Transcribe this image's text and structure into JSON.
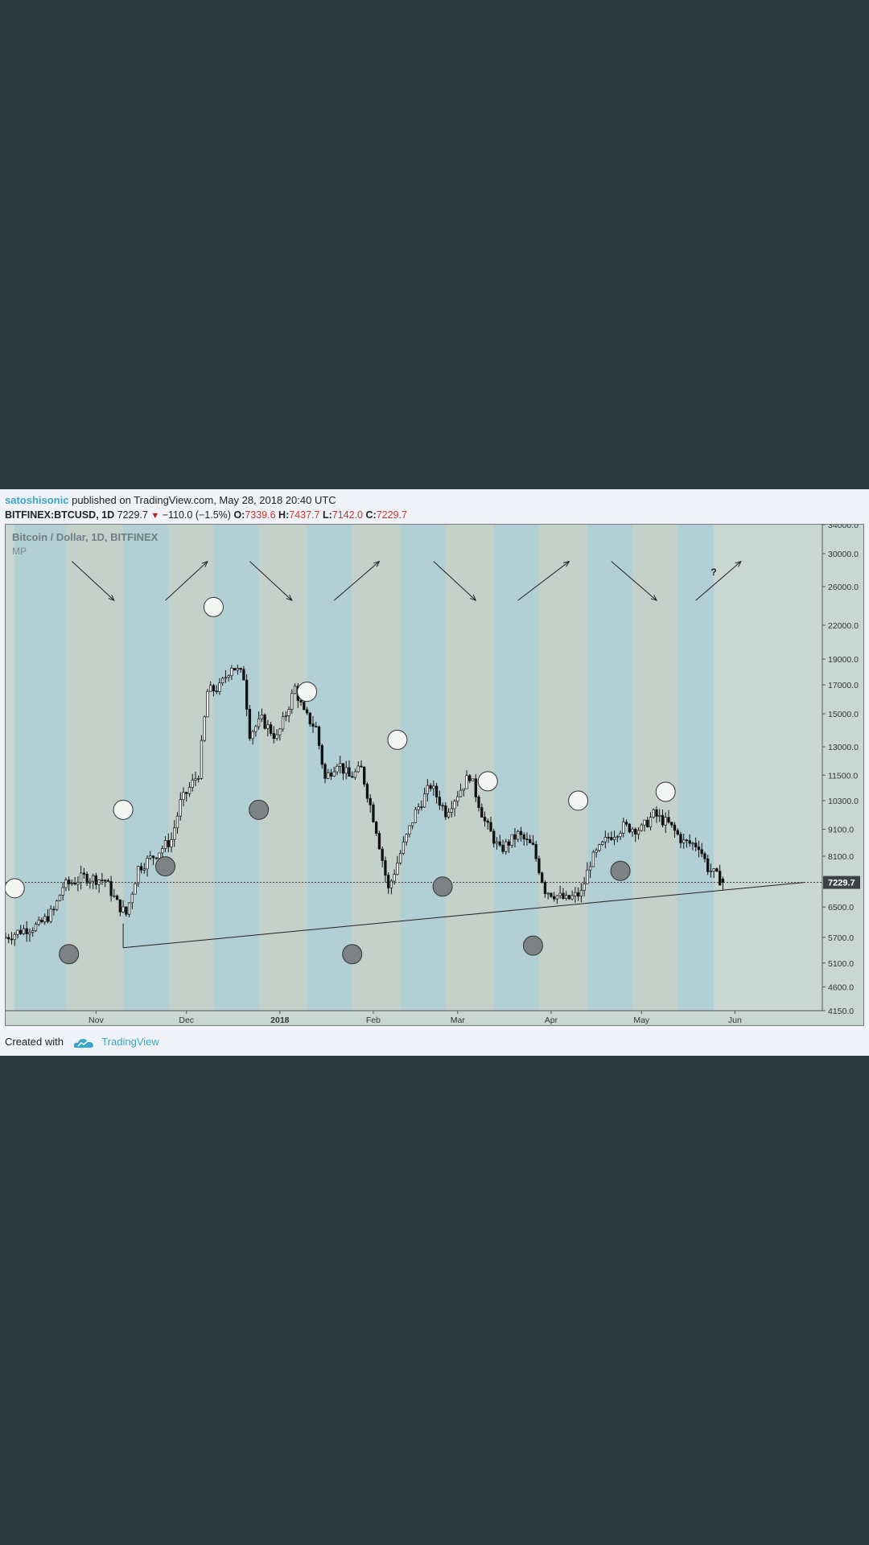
{
  "header": {
    "author": "satoshisonic",
    "published_text": "published on TradingView.com, May 28, 2018 20:40 UTC",
    "symbol": "BITFINEX:BTCUSD, 1D",
    "last": "7229.7",
    "change": "−110.0 (−1.5%)",
    "open_label": "O:",
    "open": "7339.6",
    "high_label": "H:",
    "high": "7437.7",
    "low_label": "L:",
    "low": "7142.0",
    "close_label": "C:",
    "close": "7229.7"
  },
  "footer": {
    "created_with": "Created with",
    "brand": "TradingView"
  },
  "colors": {
    "band_blue": "#b3cfd6",
    "band_green": "#c3d1ca",
    "candle": "#111111",
    "accent": "#3aa5c9"
  },
  "chart_data": {
    "type": "candlestick",
    "title": "Bitcoin / Dollar, 1D, BITFINEX",
    "subtitle": "MP",
    "y_scale": "log",
    "ylim": [
      4150,
      34000
    ],
    "y_ticks": [
      34000,
      30000,
      26000,
      22000,
      19000,
      17000,
      15000,
      13000,
      11500,
      10300,
      9100,
      8100,
      7229.7,
      6500,
      5700,
      5100,
      4600,
      4150
    ],
    "y_tick_labels": [
      "34000.0",
      "30000.0",
      "26000.0",
      "22000.0",
      "19000.0",
      "17000.0",
      "15000.0",
      "13000.0",
      "11500.0",
      "10300.0",
      "9100.0",
      "8100.0",
      "7229.7",
      "6500.0",
      "5700.0",
      "5100.0",
      "4600.0",
      "4150.0"
    ],
    "last_price": 7229.7,
    "xlim": [
      "2017-10-02",
      "2018-06-30"
    ],
    "x_ticks": [
      {
        "date": "2017-11-01",
        "label": "Nov"
      },
      {
        "date": "2017-12-01",
        "label": "Dec"
      },
      {
        "date": "2018-01-01",
        "label": "2018"
      },
      {
        "date": "2018-02-01",
        "label": "Feb"
      },
      {
        "date": "2018-03-01",
        "label": "Mar"
      },
      {
        "date": "2018-04-01",
        "label": "Apr"
      },
      {
        "date": "2018-05-01",
        "label": "May"
      },
      {
        "date": "2018-06-01",
        "label": "Jun"
      }
    ],
    "path": [
      [
        "2017-10-02",
        5700
      ],
      [
        "2017-10-08",
        5900
      ],
      [
        "2017-10-13",
        6000
      ],
      [
        "2017-10-18",
        6400
      ],
      [
        "2017-10-21",
        7100
      ],
      [
        "2017-10-28",
        7400
      ],
      [
        "2017-11-04",
        7300
      ],
      [
        "2017-11-08",
        6600
      ],
      [
        "2017-11-11",
        6300
      ],
      [
        "2017-11-15",
        7700
      ],
      [
        "2017-11-20",
        8100
      ],
      [
        "2017-11-26",
        8700
      ],
      [
        "2017-11-29",
        10200
      ],
      [
        "2017-12-05",
        11600
      ],
      [
        "2017-12-08",
        16500
      ],
      [
        "2017-12-12",
        16800
      ],
      [
        "2017-12-16",
        18500
      ],
      [
        "2017-12-20",
        17600
      ],
      [
        "2017-12-22",
        13800
      ],
      [
        "2017-12-26",
        14600
      ],
      [
        "2017-12-31",
        13500
      ],
      [
        "2018-01-03",
        15000
      ],
      [
        "2018-01-06",
        16800
      ],
      [
        "2018-01-09",
        15000
      ],
      [
        "2018-01-13",
        14100
      ],
      [
        "2018-01-16",
        11300
      ],
      [
        "2018-01-20",
        12200
      ],
      [
        "2018-01-24",
        11400
      ],
      [
        "2018-01-28",
        11800
      ],
      [
        "2018-02-02",
        9100
      ],
      [
        "2018-02-06",
        7000
      ],
      [
        "2018-02-10",
        8200
      ],
      [
        "2018-02-15",
        9800
      ],
      [
        "2018-02-20",
        11000
      ],
      [
        "2018-02-25",
        9800
      ],
      [
        "2018-03-05",
        11500
      ],
      [
        "2018-03-10",
        9400
      ],
      [
        "2018-03-15",
        8300
      ],
      [
        "2018-03-21",
        8900
      ],
      [
        "2018-03-26",
        8400
      ],
      [
        "2018-03-30",
        7000
      ],
      [
        "2018-04-06",
        6700
      ],
      [
        "2018-04-11",
        6900
      ],
      [
        "2018-04-14",
        7900
      ],
      [
        "2018-04-20",
        8800
      ],
      [
        "2018-04-25",
        9200
      ],
      [
        "2018-05-01",
        9100
      ],
      [
        "2018-05-05",
        9700
      ],
      [
        "2018-05-10",
        9300
      ],
      [
        "2018-05-15",
        8600
      ],
      [
        "2018-05-20",
        8500
      ],
      [
        "2018-05-23",
        7700
      ],
      [
        "2018-05-28",
        7230
      ]
    ],
    "last_candle": {
      "date": "2018-05-28",
      "open": 7339.6,
      "high": 7437.7,
      "low": 7142.0,
      "close": 7229.7
    },
    "background_bands": [
      {
        "start": "2017-10-05",
        "end": "2017-10-22",
        "color": "blue"
      },
      {
        "start": "2017-10-22",
        "end": "2017-11-10",
        "color": "green"
      },
      {
        "start": "2017-11-10",
        "end": "2017-11-25",
        "color": "blue"
      },
      {
        "start": "2017-11-25",
        "end": "2017-12-10",
        "color": "green"
      },
      {
        "start": "2017-12-10",
        "end": "2017-12-25",
        "color": "blue"
      },
      {
        "start": "2017-12-25",
        "end": "2018-01-10",
        "color": "green"
      },
      {
        "start": "2018-01-10",
        "end": "2018-01-25",
        "color": "blue"
      },
      {
        "start": "2018-01-25",
        "end": "2018-02-10",
        "color": "green"
      },
      {
        "start": "2018-02-10",
        "end": "2018-02-25",
        "color": "blue"
      },
      {
        "start": "2018-02-25",
        "end": "2018-03-13",
        "color": "green"
      },
      {
        "start": "2018-03-13",
        "end": "2018-03-28",
        "color": "blue"
      },
      {
        "start": "2018-03-28",
        "end": "2018-04-13",
        "color": "green"
      },
      {
        "start": "2018-04-13",
        "end": "2018-04-28",
        "color": "blue"
      },
      {
        "start": "2018-04-28",
        "end": "2018-05-13",
        "color": "green"
      },
      {
        "start": "2018-05-13",
        "end": "2018-05-25",
        "color": "blue"
      }
    ],
    "trendline": [
      [
        "2017-11-10",
        5450
      ],
      [
        "2018-06-24",
        7230
      ]
    ],
    "markers": [
      {
        "date": "2017-10-05",
        "value": 7050,
        "fill": "white"
      },
      {
        "date": "2017-10-23",
        "value": 5300,
        "fill": "gray"
      },
      {
        "date": "2017-11-10",
        "value": 9900,
        "fill": "white"
      },
      {
        "date": "2017-11-24",
        "value": 7750,
        "fill": "gray"
      },
      {
        "date": "2017-12-10",
        "value": 23800,
        "fill": "white"
      },
      {
        "date": "2017-12-25",
        "value": 9900,
        "fill": "gray"
      },
      {
        "date": "2018-01-10",
        "value": 16500,
        "fill": "white"
      },
      {
        "date": "2018-01-25",
        "value": 5300,
        "fill": "gray"
      },
      {
        "date": "2018-02-09",
        "value": 13400,
        "fill": "white"
      },
      {
        "date": "2018-02-24",
        "value": 7100,
        "fill": "gray"
      },
      {
        "date": "2018-03-11",
        "value": 11200,
        "fill": "white"
      },
      {
        "date": "2018-03-26",
        "value": 5500,
        "fill": "gray"
      },
      {
        "date": "2018-04-10",
        "value": 10300,
        "fill": "white"
      },
      {
        "date": "2018-04-24",
        "value": 7600,
        "fill": "gray"
      },
      {
        "date": "2018-05-09",
        "value": 10700,
        "fill": "white"
      }
    ],
    "arrows": [
      {
        "from": [
          "2017-10-24",
          29000
        ],
        "to": [
          "2017-11-07",
          24500
        ]
      },
      {
        "from": [
          "2017-11-24",
          24500
        ],
        "to": [
          "2017-12-08",
          29000
        ]
      },
      {
        "from": [
          "2017-12-22",
          29000
        ],
        "to": [
          "2018-01-05",
          24500
        ]
      },
      {
        "from": [
          "2018-01-19",
          24500
        ],
        "to": [
          "2018-02-03",
          29000
        ]
      },
      {
        "from": [
          "2018-02-21",
          29000
        ],
        "to": [
          "2018-03-07",
          24500
        ]
      },
      {
        "from": [
          "2018-03-21",
          24500
        ],
        "to": [
          "2018-04-07",
          29000
        ]
      },
      {
        "from": [
          "2018-04-21",
          29000
        ],
        "to": [
          "2018-05-06",
          24500
        ]
      },
      {
        "from": [
          "2018-05-19",
          24500
        ],
        "to": [
          "2018-06-03",
          29000
        ]
      }
    ],
    "annotations": [
      {
        "text": "?",
        "date": "2018-05-24",
        "value": 27300
      }
    ]
  }
}
